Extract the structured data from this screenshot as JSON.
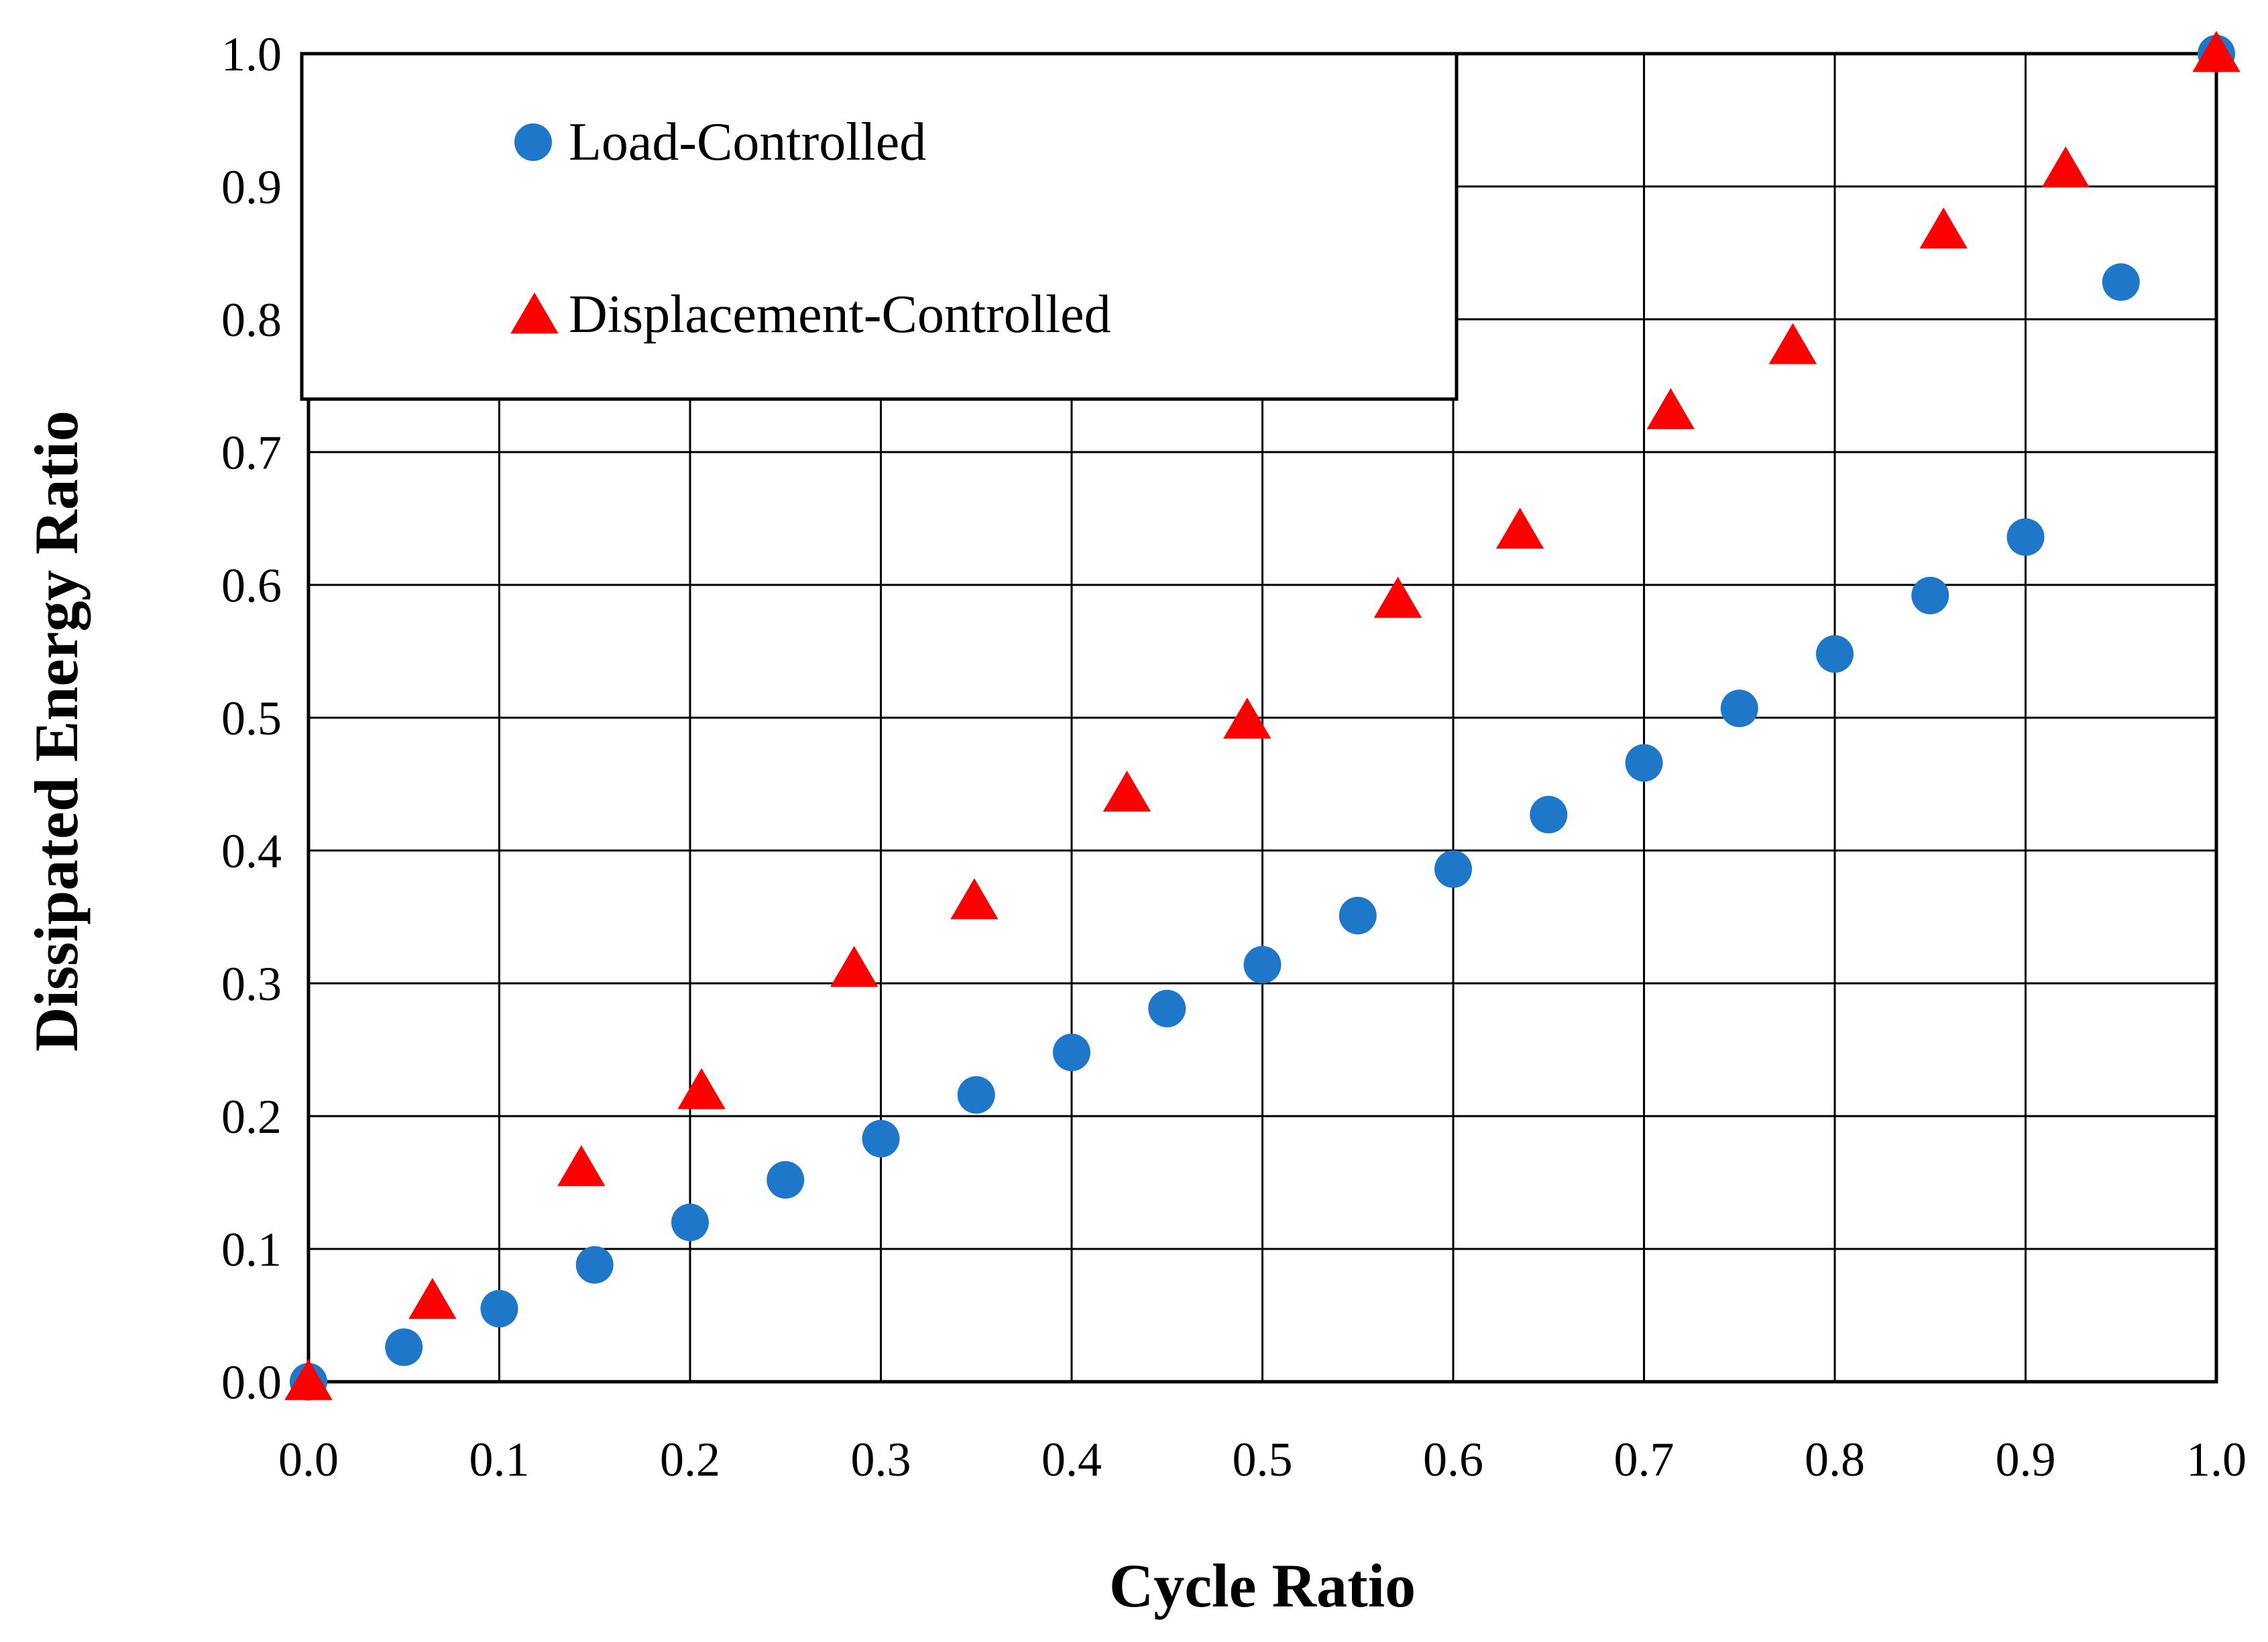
{
  "chart_data": {
    "type": "scatter",
    "title": "",
    "xlabel": "Cycle Ratio",
    "ylabel": "Dissipated Energy Ratio",
    "xlim": [
      0,
      1
    ],
    "ylim": [
      0,
      1
    ],
    "x_ticks": [
      "0.0",
      "0.1",
      "0.2",
      "0.3",
      "0.4",
      "0.5",
      "0.6",
      "0.7",
      "0.8",
      "0.9",
      "1.0"
    ],
    "y_ticks": [
      "0.0",
      "0.1",
      "0.2",
      "0.3",
      "0.4",
      "0.5",
      "0.6",
      "0.7",
      "0.8",
      "0.9",
      "1.0"
    ],
    "grid": true,
    "legend_position": "top-left",
    "series": [
      {
        "name": "Load-Controlled",
        "marker": "circle",
        "color": "#1f77c9",
        "x": [
          0.0,
          0.05,
          0.1,
          0.15,
          0.2,
          0.25,
          0.3,
          0.35,
          0.4,
          0.45,
          0.5,
          0.55,
          0.6,
          0.65,
          0.7,
          0.75,
          0.8,
          0.85,
          0.9,
          0.95,
          1.0
        ],
        "y": [
          0.0,
          0.026,
          0.055,
          0.088,
          0.12,
          0.152,
          0.183,
          0.216,
          0.248,
          0.281,
          0.314,
          0.351,
          0.386,
          0.427,
          0.466,
          0.507,
          0.548,
          0.592,
          0.636,
          0.828,
          1.0
        ]
      },
      {
        "name": "Displacement-Controlled",
        "marker": "triangle",
        "color": "#ff0000",
        "x": [
          0.0,
          0.065,
          0.143,
          0.206,
          0.286,
          0.349,
          0.429,
          0.492,
          0.571,
          0.635,
          0.714,
          0.778,
          0.857,
          0.921,
          1.0
        ],
        "y": [
          0.0,
          0.061,
          0.161,
          0.219,
          0.311,
          0.362,
          0.443,
          0.498,
          0.589,
          0.641,
          0.731,
          0.78,
          0.867,
          0.913,
          1.0
        ]
      }
    ]
  }
}
